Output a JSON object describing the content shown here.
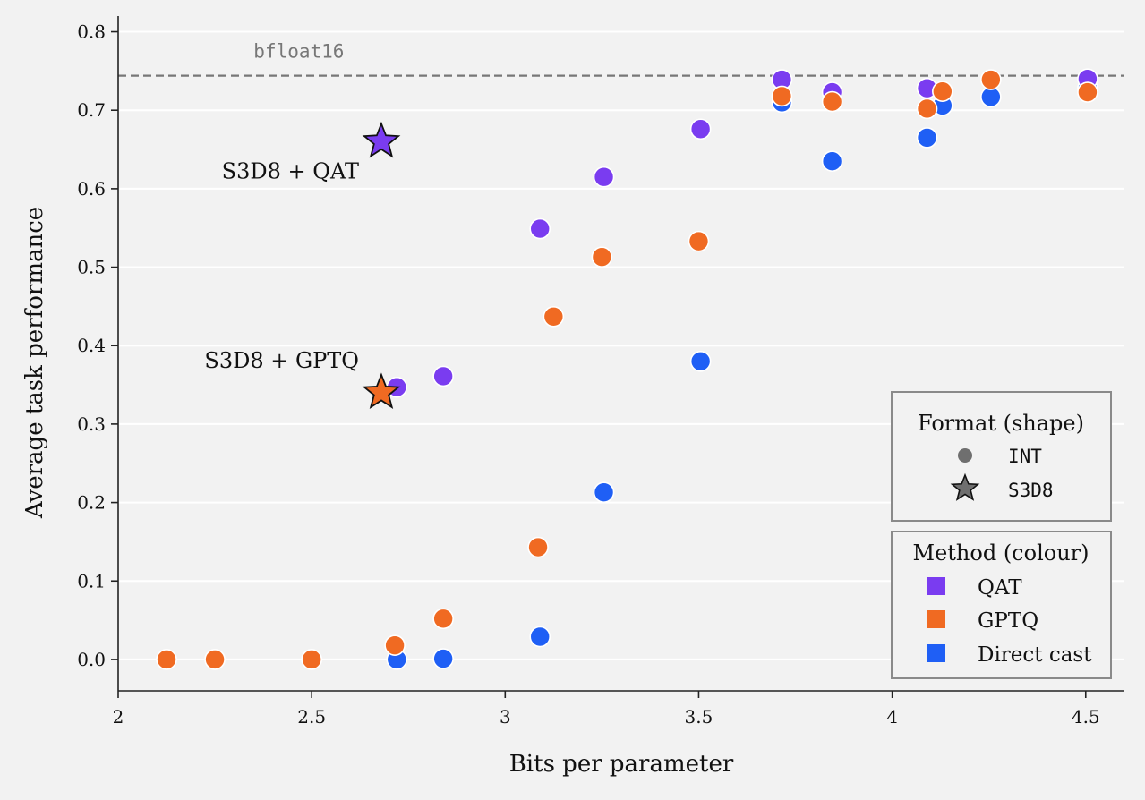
{
  "chart_data": {
    "type": "scatter",
    "title": "",
    "xlabel": "Bits per parameter",
    "ylabel": "Average task performance",
    "xlim": [
      2.0,
      4.6
    ],
    "ylim": [
      -0.04,
      0.82
    ],
    "x_ticks": [
      {
        "value": 2.0,
        "label": "2"
      },
      {
        "value": 2.5,
        "label": "2.5"
      },
      {
        "value": 3.0,
        "label": "3"
      },
      {
        "value": 3.5,
        "label": "3.5"
      },
      {
        "value": 4.0,
        "label": "4"
      },
      {
        "value": 4.5,
        "label": "4.5"
      }
    ],
    "y_ticks": [
      {
        "value": 0.0,
        "label": "0.0"
      },
      {
        "value": 0.1,
        "label": "0.1"
      },
      {
        "value": 0.2,
        "label": "0.2"
      },
      {
        "value": 0.3,
        "label": "0.3"
      },
      {
        "value": 0.4,
        "label": "0.4"
      },
      {
        "value": 0.5,
        "label": "0.5"
      },
      {
        "value": 0.6,
        "label": "0.6"
      },
      {
        "value": 0.7,
        "label": "0.7"
      },
      {
        "value": 0.8,
        "label": "0.8"
      }
    ],
    "grid": "horizontal",
    "reference_line": {
      "y": 0.744,
      "label": "bfloat16",
      "color": "#777777",
      "style": "dashed"
    },
    "series": [
      {
        "name": "Direct cast",
        "method": "Direct cast",
        "format": "INT",
        "color": "#1f5ff5",
        "points": [
          {
            "x": 2.125,
            "y": 0.0
          },
          {
            "x": 2.25,
            "y": 0.0
          },
          {
            "x": 2.5,
            "y": 0.0
          },
          {
            "x": 2.72,
            "y": 0.0
          },
          {
            "x": 2.84,
            "y": 0.001
          },
          {
            "x": 3.09,
            "y": 0.029
          },
          {
            "x": 3.255,
            "y": 0.213
          },
          {
            "x": 3.505,
            "y": 0.38
          },
          {
            "x": 3.715,
            "y": 0.71
          },
          {
            "x": 3.845,
            "y": 0.635
          },
          {
            "x": 4.09,
            "y": 0.665
          },
          {
            "x": 4.13,
            "y": 0.706
          },
          {
            "x": 4.255,
            "y": 0.717
          },
          {
            "x": 4.505,
            "y": 0.728
          }
        ]
      },
      {
        "name": "QAT",
        "method": "QAT",
        "format": "INT",
        "color": "#7a3cf0",
        "points": [
          {
            "x": 2.72,
            "y": 0.347
          },
          {
            "x": 2.84,
            "y": 0.361
          },
          {
            "x": 3.09,
            "y": 0.549
          },
          {
            "x": 3.255,
            "y": 0.615
          },
          {
            "x": 3.505,
            "y": 0.676
          },
          {
            "x": 3.715,
            "y": 0.739
          },
          {
            "x": 3.845,
            "y": 0.723
          },
          {
            "x": 4.09,
            "y": 0.728
          },
          {
            "x": 4.505,
            "y": 0.74
          }
        ]
      },
      {
        "name": "GPTQ",
        "method": "GPTQ",
        "format": "INT",
        "color": "#f06a22",
        "points": [
          {
            "x": 2.125,
            "y": 0.0
          },
          {
            "x": 2.25,
            "y": 0.0
          },
          {
            "x": 2.5,
            "y": 0.0
          },
          {
            "x": 2.715,
            "y": 0.018
          },
          {
            "x": 2.84,
            "y": 0.052
          },
          {
            "x": 3.085,
            "y": 0.143
          },
          {
            "x": 3.125,
            "y": 0.437
          },
          {
            "x": 3.25,
            "y": 0.513
          },
          {
            "x": 3.5,
            "y": 0.533
          },
          {
            "x": 3.715,
            "y": 0.718
          },
          {
            "x": 3.845,
            "y": 0.711
          },
          {
            "x": 4.09,
            "y": 0.702
          },
          {
            "x": 4.13,
            "y": 0.724
          },
          {
            "x": 4.255,
            "y": 0.739
          },
          {
            "x": 4.505,
            "y": 0.723
          }
        ]
      },
      {
        "name": "S3D8 + GPTQ",
        "method": "GPTQ",
        "format": "S3D8",
        "color": "#f06a22",
        "label": "S3D8 + GPTQ",
        "points": [
          {
            "x": 2.68,
            "y": 0.34
          }
        ]
      },
      {
        "name": "S3D8 + QAT",
        "method": "QAT",
        "format": "S3D8",
        "color": "#7a3cf0",
        "label": "S3D8 + QAT",
        "points": [
          {
            "x": 2.68,
            "y": 0.66
          }
        ]
      }
    ],
    "legend": {
      "placement": "lower-right",
      "format_title": "Format (shape)",
      "format_entries": [
        {
          "label": "INT",
          "shape": "circle",
          "color": "#6f6f6f"
        },
        {
          "label": "S3D8",
          "shape": "star",
          "color": "#6f6f6f"
        }
      ],
      "method_title": "Method (colour)",
      "method_entries": [
        {
          "label": "QAT",
          "color": "#7a3cf0"
        },
        {
          "label": "GPTQ",
          "color": "#f06a22"
        },
        {
          "label": "Direct cast",
          "color": "#1f5ff5"
        }
      ]
    }
  }
}
